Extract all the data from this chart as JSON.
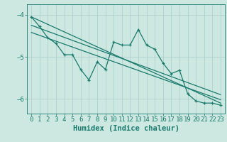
{
  "title": "",
  "xlabel": "Humidex (Indice chaleur)",
  "ylabel": "",
  "bg_color": "#cce8e0",
  "line_color": "#1a7a6e",
  "xlim": [
    -0.5,
    23.5
  ],
  "ylim": [
    -6.35,
    -3.75
  ],
  "xticks": [
    0,
    1,
    2,
    3,
    4,
    5,
    6,
    7,
    8,
    9,
    10,
    11,
    12,
    13,
    14,
    15,
    16,
    17,
    18,
    19,
    20,
    21,
    22,
    23
  ],
  "yticks": [
    -6,
    -5,
    -4
  ],
  "data_x": [
    0,
    1,
    2,
    3,
    4,
    5,
    6,
    7,
    8,
    9,
    10,
    11,
    12,
    13,
    14,
    15,
    16,
    17,
    18,
    19,
    20,
    21,
    22,
    23
  ],
  "data_y": [
    -4.05,
    -4.28,
    -4.55,
    -4.68,
    -4.95,
    -4.95,
    -5.3,
    -5.55,
    -5.12,
    -5.3,
    -4.65,
    -4.72,
    -4.72,
    -4.35,
    -4.72,
    -4.82,
    -5.15,
    -5.4,
    -5.32,
    -5.88,
    -6.05,
    -6.1,
    -6.1,
    -6.15
  ],
  "trend1_x": [
    0,
    23
  ],
  "trend1_y": [
    -4.05,
    -6.1
  ],
  "trend2_x": [
    0,
    23
  ],
  "trend2_y": [
    -4.25,
    -5.9
  ],
  "trend3_x": [
    0,
    23
  ],
  "trend3_y": [
    -4.42,
    -6.02
  ],
  "grid_color": "#aacccc",
  "tick_fontsize": 6.5,
  "label_fontsize": 7.5
}
